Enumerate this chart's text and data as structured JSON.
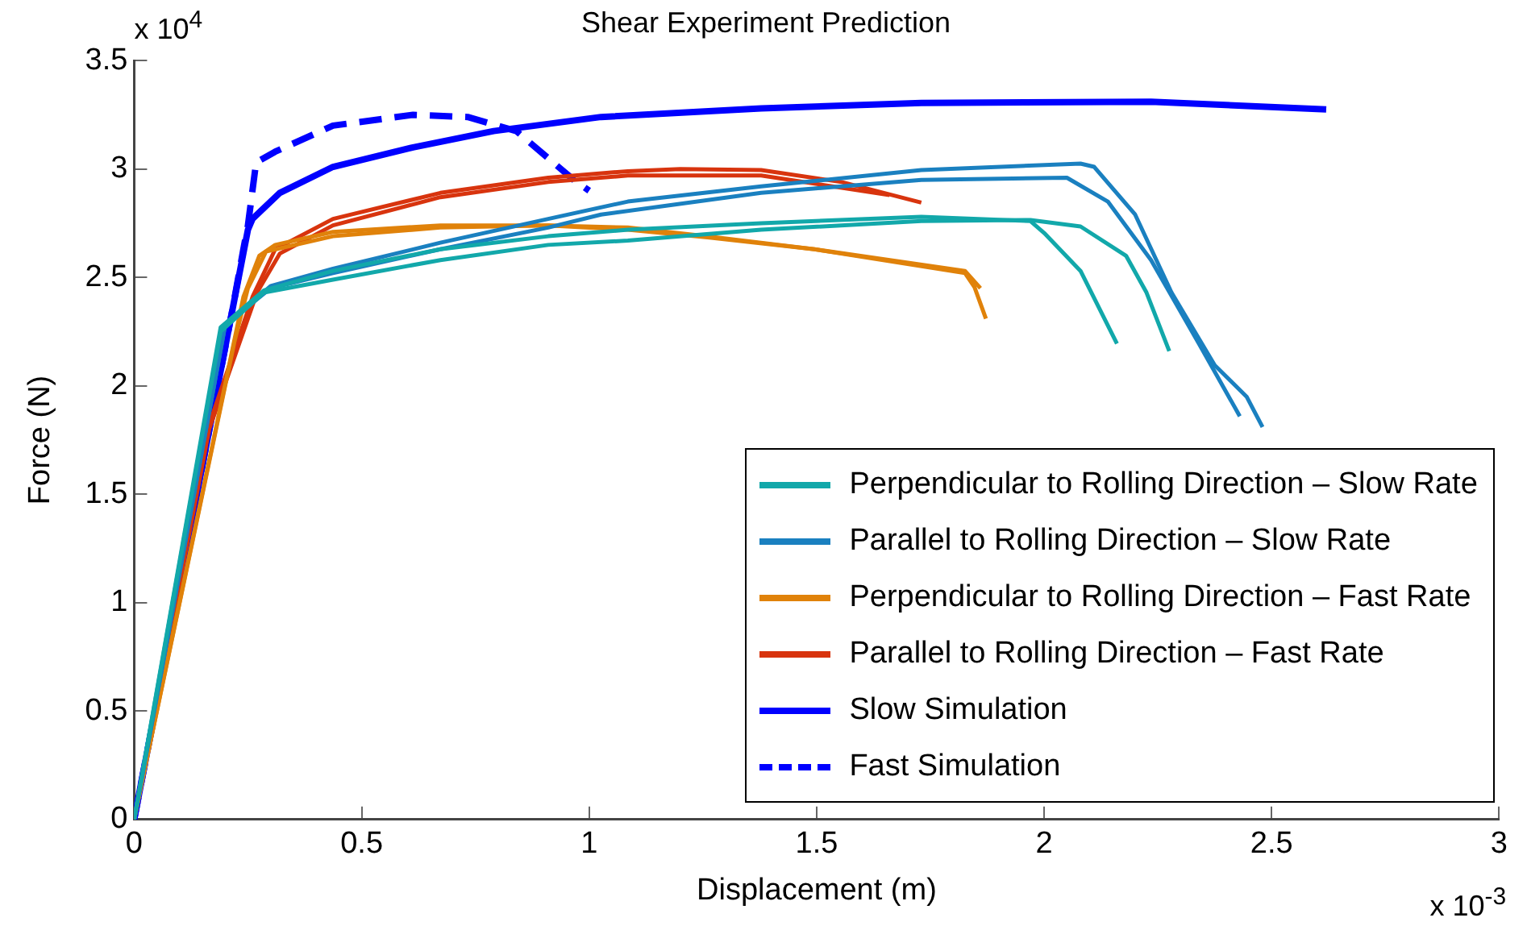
{
  "chart_data": {
    "type": "line",
    "title": "Shear Experiment Prediction",
    "xlabel": "Displacement (m)",
    "ylabel": "Force (N)",
    "xlim": [
      0,
      3
    ],
    "xticks": [
      0,
      0.5,
      1,
      1.5,
      2,
      2.5,
      3
    ],
    "ylim": [
      0,
      3.5
    ],
    "yticks": [
      0,
      0.5,
      1,
      1.5,
      2,
      2.5,
      3,
      3.5
    ],
    "annotations": [
      "x 10$^{4}$",
      "x 10$^{-3}$"
    ],
    "grid": false,
    "legend": "bottom right",
    "marker": "none",
    "series": [
      {
        "name": "Perpendicular to Rolling Direction – Slow Rate",
        "color": "#12a8aa",
        "line_style": "solid",
        "x": [
          0,
          0.19,
          0.285,
          0.437,
          0.673,
          0.91,
          1.085,
          1.378,
          1.73,
          1.97,
          2.0,
          2.08,
          2.16
        ],
        "values": [
          0,
          2.27,
          2.44,
          2.53,
          2.63,
          2.69,
          2.72,
          2.75,
          2.78,
          2.76,
          2.705,
          2.53,
          2.195
        ]
      },
      {
        "color": "#12a8aa",
        "line_style": "solid",
        "x": [
          0,
          0.19,
          0.285,
          0.437,
          0.673,
          0.91,
          1.085,
          1.378,
          1.73,
          1.97,
          2.08,
          2.18,
          2.225,
          2.275
        ],
        "values": [
          0,
          2.25,
          2.43,
          2.49,
          2.58,
          2.65,
          2.67,
          2.72,
          2.76,
          2.765,
          2.735,
          2.6,
          2.43,
          2.16
        ]
      },
      {
        "name": "Parallel to Rolling Direction – Slow Rate",
        "color": "#1a80c0",
        "line_style": "solid",
        "x": [
          0,
          0.2,
          0.3,
          0.437,
          0.673,
          0.91,
          1.085,
          1.378,
          1.73,
          2.08,
          2.11,
          2.2,
          2.28,
          2.375,
          2.445,
          2.48
        ],
        "values": [
          0,
          2.28,
          2.46,
          2.54,
          2.66,
          2.77,
          2.85,
          2.92,
          2.995,
          3.025,
          3.01,
          2.79,
          2.43,
          2.095,
          1.95,
          1.81
        ]
      },
      {
        "color": "#1a80c0",
        "line_style": "solid",
        "x": [
          0,
          0.2,
          0.3,
          0.437,
          0.673,
          0.91,
          1.026,
          1.378,
          1.73,
          2.05,
          2.14,
          2.235,
          2.34,
          2.43
        ],
        "values": [
          0,
          2.28,
          2.45,
          2.52,
          2.63,
          2.73,
          2.79,
          2.89,
          2.95,
          2.96,
          2.85,
          2.58,
          2.195,
          1.86
        ]
      },
      {
        "name": "Perpendicular to Rolling Direction – Fast Rate",
        "color": "#e0820a",
        "line_style": "solid",
        "x": [
          0,
          0.24,
          0.275,
          0.31,
          0.437,
          0.673,
          0.91,
          1.085,
          1.26,
          1.495,
          1.826,
          1.847,
          1.872
        ],
        "values": [
          0,
          2.41,
          2.6,
          2.65,
          2.71,
          2.74,
          2.74,
          2.72,
          2.685,
          2.63,
          2.52,
          2.455,
          2.31
        ]
      },
      {
        "color": "#e0820a",
        "line_style": "solid",
        "x": [
          0,
          0.22,
          0.25,
          0.29,
          0.437,
          0.673,
          0.91,
          1.085,
          1.26,
          1.495,
          1.826,
          1.86
        ],
        "values": [
          0,
          2.2,
          2.45,
          2.62,
          2.69,
          2.73,
          2.74,
          2.73,
          2.69,
          2.63,
          2.53,
          2.45
        ]
      },
      {
        "name": "Parallel to Rolling Direction – Fast Rate",
        "color": "#d8340e",
        "line_style": "solid",
        "x": [
          0,
          0.155,
          0.26,
          0.31,
          0.437,
          0.673,
          0.91,
          1.085,
          1.2,
          1.378,
          1.555,
          1.73
        ],
        "values": [
          0,
          1.76,
          2.41,
          2.63,
          2.77,
          2.89,
          2.96,
          2.99,
          3.0,
          2.995,
          2.94,
          2.845
        ]
      },
      {
        "color": "#d8340e",
        "line_style": "solid",
        "x": [
          0,
          0.165,
          0.27,
          0.32,
          0.437,
          0.673,
          0.91,
          1.085,
          1.2,
          1.378,
          1.66
        ],
        "values": [
          0,
          1.8,
          2.43,
          2.61,
          2.74,
          2.87,
          2.94,
          2.97,
          2.97,
          2.97,
          2.88
        ]
      },
      {
        "name": "Slow Simulation",
        "color": "#0000ff",
        "line_style": "solid",
        "x": [
          0,
          0.215,
          0.25,
          0.26,
          0.32,
          0.437,
          0.613,
          0.79,
          1.026,
          1.378,
          1.73,
          2.235,
          2.62
        ],
        "values": [
          0,
          2.34,
          2.72,
          2.77,
          2.89,
          3.01,
          3.1,
          3.175,
          3.24,
          3.28,
          3.305,
          3.31,
          3.275
        ]
      },
      {
        "name": "Fast Simulation",
        "color": "#0000ff",
        "line_style": "dashed",
        "x": [
          0,
          0.215,
          0.24,
          0.25,
          0.268,
          0.31,
          0.437,
          0.613,
          0.733,
          0.84,
          0.966,
          1.0
        ],
        "values": [
          0,
          2.34,
          2.63,
          2.74,
          3.03,
          3.08,
          3.2,
          3.25,
          3.24,
          3.175,
          2.95,
          2.9
        ]
      }
    ]
  }
}
